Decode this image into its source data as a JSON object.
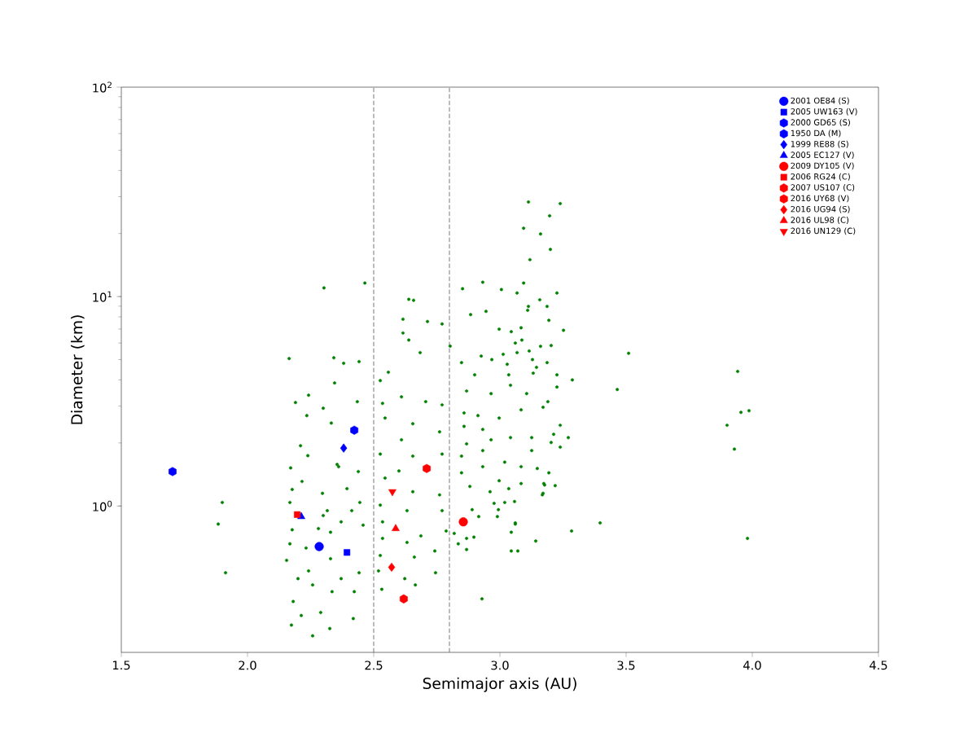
{
  "chart_data": {
    "type": "scatter",
    "xlabel": "Semimajor axis (AU)",
    "ylabel": "Diameter (km)",
    "log": "y",
    "xlim": [
      1.5,
      4.5
    ],
    "ylim": [
      0.2,
      100
    ],
    "xticks": [
      1.5,
      {
        "value": 2,
        "label": "2.0"
      },
      2.5,
      {
        "value": 3,
        "label": "3.0"
      },
      3.5,
      {
        "value": 4,
        "label": "4.0"
      },
      4.5
    ],
    "yticks": [
      {
        "value": 1,
        "label": "10$^{0}$"
      },
      {
        "value": 10,
        "label": "10$^{1}$"
      },
      {
        "value": 100,
        "label": "10$^{2}$"
      }
    ],
    "legend": "top right",
    "grid": false,
    "ref_lines": [
      {
        "axis": "x",
        "value": 2.5,
        "color": "#808080",
        "line_style": "dashed"
      },
      {
        "axis": "x",
        "value": 2.8,
        "color": "#808080",
        "line_style": "dashed"
      }
    ],
    "series": [
      {
        "color": "#008000",
        "marker": "circle",
        "x": [
          2.165,
          1.9,
          1.884,
          1.913,
          2.303,
          2.465,
          3.51,
          3.465,
          3.397,
          3.287,
          3.284,
          3.271,
          3.942,
          3.9,
          3.955,
          3.987,
          3.929,
          3.981,
          2.929,
          3.113,
          3.239,
          3.197,
          3.094,
          3.161,
          3.2,
          3.119,
          2.932,
          3.094,
          2.852,
          3.006,
          3.226,
          2.342,
          2.442,
          2.381,
          2.345,
          2.435,
          2.19,
          2.242,
          2.235,
          2.3,
          2.332,
          2.21,
          2.239,
          2.171,
          2.355,
          2.439,
          2.216,
          2.297,
          2.394,
          2.177,
          2.445,
          2.168,
          2.316,
          2.371,
          2.458,
          2.177,
          2.281,
          2.168,
          2.232,
          2.329,
          2.155,
          2.242,
          2.371,
          2.2,
          2.442,
          2.258,
          2.335,
          2.423,
          2.181,
          2.29,
          2.213,
          2.419,
          2.174,
          2.326,
          2.258,
          2.361,
          2.413,
          2.329,
          2.3,
          2.639,
          2.658,
          2.803,
          2.616,
          2.616,
          2.713,
          2.771,
          2.639,
          2.684,
          2.558,
          2.526,
          2.61,
          2.535,
          2.545,
          2.706,
          2.771,
          2.655,
          2.61,
          2.761,
          2.526,
          2.6,
          2.655,
          2.771,
          2.545,
          2.655,
          2.761,
          2.526,
          2.632,
          2.771,
          2.535,
          2.687,
          2.787,
          2.535,
          2.632,
          2.742,
          2.526,
          2.661,
          2.745,
          2.519,
          2.623,
          2.665,
          2.532,
          2.848,
          2.968,
          3.029,
          2.926,
          2.997,
          3.045,
          3.113,
          3.158,
          3.187,
          3.068,
          2.945,
          2.884,
          3.252,
          3.203,
          3.061,
          2.9,
          2.868,
          2.965,
          3.042,
          3.106,
          3.19,
          3.226,
          2.858,
          2.913,
          2.997,
          3.084,
          3.171,
          3.239,
          2.858,
          2.932,
          3.042,
          3.126,
          3.203,
          3.239,
          2.868,
          2.965,
          3.126,
          2.848,
          2.932,
          3.019,
          3.084,
          3.148,
          3.194,
          2.848,
          2.932,
          2.997,
          3.084,
          3.174,
          3.219,
          2.881,
          2.961,
          3.035,
          3.171,
          2.977,
          3.019,
          2.89,
          2.99,
          2.916,
          3.058,
          3.061,
          3.045,
          2.868,
          2.897,
          2.819,
          2.835,
          2.868,
          3.142,
          3.045,
          3.071,
          3.194,
          3.11,
          3.084,
          3.161,
          3.087,
          3.116,
          3.068,
          3.013,
          3.187,
          3.129,
          3.035,
          3.145,
          3.226,
          3.132,
          3.061,
          3.168,
          3.177,
          3.213,
          2.994
        ],
        "values": [
          5.06,
          1.04,
          0.82,
          0.48,
          11.0,
          11.6,
          5.36,
          3.6,
          0.83,
          4.0,
          0.76,
          2.12,
          4.39,
          2.43,
          2.8,
          2.85,
          1.87,
          0.7,
          0.36,
          28.3,
          27.8,
          24.3,
          21.2,
          19.9,
          16.8,
          15.0,
          11.7,
          11.6,
          10.9,
          10.8,
          10.4,
          5.1,
          4.89,
          4.8,
          3.87,
          3.15,
          3.12,
          3.38,
          2.7,
          2.93,
          2.49,
          1.94,
          1.74,
          1.52,
          1.58,
          1.46,
          1.31,
          1.15,
          1.21,
          1.2,
          1.04,
          1.04,
          0.95,
          0.84,
          0.81,
          0.77,
          0.78,
          0.66,
          0.63,
          0.56,
          0.55,
          0.49,
          0.45,
          0.45,
          0.48,
          0.42,
          0.39,
          0.39,
          0.35,
          0.31,
          0.3,
          0.29,
          0.27,
          0.26,
          0.24,
          1.54,
          0.95,
          0.75,
          0.9,
          9.7,
          9.6,
          5.8,
          7.8,
          6.7,
          7.6,
          7.4,
          6.2,
          5.4,
          4.35,
          3.97,
          3.32,
          3.09,
          2.63,
          3.15,
          3.04,
          2.47,
          2.07,
          2.26,
          1.77,
          1.47,
          1.73,
          1.77,
          1.36,
          1.17,
          1.13,
          1.01,
          0.95,
          0.95,
          0.84,
          0.72,
          0.76,
          0.7,
          0.67,
          0.61,
          0.58,
          0.57,
          0.48,
          0.49,
          0.45,
          0.42,
          0.4,
          4.84,
          5.0,
          4.75,
          5.2,
          6.99,
          6.8,
          8.98,
          9.65,
          8.98,
          10.4,
          8.5,
          8.2,
          6.9,
          5.84,
          6.0,
          4.23,
          3.54,
          3.44,
          3.77,
          3.44,
          3.15,
          3.7,
          2.78,
          2.7,
          2.63,
          2.88,
          2.96,
          2.43,
          2.4,
          2.32,
          2.12,
          2.12,
          2.01,
          1.91,
          1.98,
          2.07,
          1.84,
          1.73,
          1.84,
          1.62,
          1.54,
          1.51,
          1.44,
          1.44,
          1.54,
          1.32,
          1.28,
          1.28,
          1.25,
          1.24,
          1.17,
          1.21,
          1.15,
          1.03,
          1.04,
          0.96,
          0.89,
          0.89,
          1.05,
          0.82,
          0.75,
          0.7,
          0.71,
          0.74,
          0.66,
          0.62,
          0.68,
          0.61,
          0.61,
          7.7,
          8.6,
          7.1,
          5.79,
          6.2,
          5.5,
          5.4,
          5.3,
          4.84,
          5.0,
          4.23,
          4.59,
          4.23,
          4.31,
          0.83,
          1.13,
          1.26,
          2.2,
          0.96
        ]
      },
      {
        "name": "2001 OE84 (S)",
        "color": "#0000ff",
        "marker": "circle",
        "x": [
          2.284
        ],
        "values": [
          0.64
        ]
      },
      {
        "name": "2005 UW163 (V)",
        "color": "#0000ff",
        "marker": "square",
        "x": [
          2.394
        ],
        "values": [
          0.6
        ]
      },
      {
        "name": "2000 GD65 (S)",
        "color": "#0000ff",
        "x": [
          2.423
        ],
        "values": [
          2.3
        ]
      },
      {
        "name": "1950 DA (M)",
        "color": "#0000ff",
        "x": [
          1.703
        ],
        "values": [
          1.46
        ]
      },
      {
        "name": "1999 RE88 (S)",
        "color": "#0000ff",
        "marker": "diamond",
        "x": [
          2.381
        ],
        "values": [
          1.89
        ]
      },
      {
        "name": "2005 EC127 (V)",
        "color": "#0000ff",
        "marker": "triangle",
        "x": [
          2.213
        ],
        "values": [
          0.89
        ]
      },
      {
        "name": "2009 DY105 (V)",
        "color": "#ff0000",
        "marker": "circle",
        "x": [
          2.855
        ],
        "values": [
          0.84
        ]
      },
      {
        "name": "2006 RG24 (C)",
        "color": "#ff0000",
        "marker": "square",
        "x": [
          2.197
        ],
        "values": [
          0.91
        ]
      },
      {
        "name": "2007 US107 (C)",
        "color": "#ff0000",
        "x": [
          2.71
        ],
        "values": [
          1.51
        ]
      },
      {
        "name": "2016 UY68 (V)",
        "color": "#ff0000",
        "x": [
          2.619
        ],
        "values": [
          0.36
        ]
      },
      {
        "name": "2016 UG94 (S)",
        "color": "#ff0000",
        "marker": "diamond",
        "x": [
          2.571
        ],
        "values": [
          0.51
        ]
      },
      {
        "name": "2016 UL98 (C)",
        "color": "#ff0000",
        "marker": "triangle",
        "x": [
          2.587
        ],
        "values": [
          0.78
        ]
      },
      {
        "name": "2016 UN129 (C)",
        "color": "#ff0000",
        "marker": "triangle-down",
        "x": [
          2.574
        ],
        "values": [
          1.17
        ]
      }
    ]
  }
}
